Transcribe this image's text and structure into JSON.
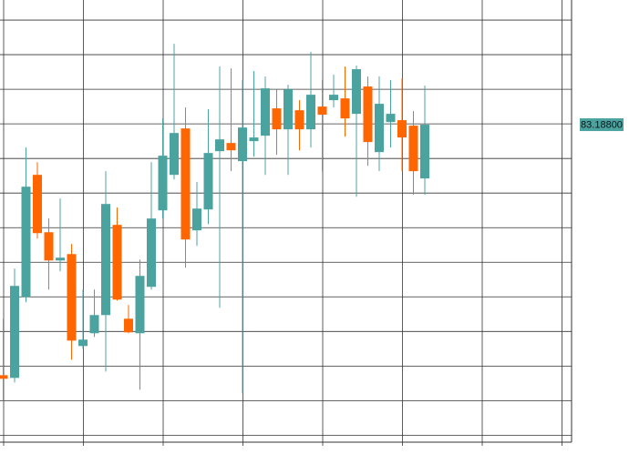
{
  "chart_data": {
    "type": "candlestick",
    "categories": [
      null,
      null,
      null,
      null,
      null,
      null,
      null,
      null,
      null,
      null,
      null,
      null,
      null,
      null,
      null,
      null,
      null,
      null,
      null,
      null,
      null,
      null,
      null,
      null,
      null,
      null,
      null,
      null,
      null,
      null,
      null,
      null,
      null,
      null,
      null,
      null,
      null,
      null
    ],
    "open": [
      79.568,
      79.529,
      80.7,
      82.463,
      81.634,
      81.226,
      81.318,
      79.99,
      80.174,
      80.437,
      81.74,
      80.384,
      80.174,
      80.845,
      81.95,
      82.463,
      83.134,
      81.661,
      81.963,
      82.805,
      82.924,
      82.661,
      82.95,
      83.029,
      83.424,
      83.121,
      83.397,
      83.121,
      83.45,
      83.542,
      83.568,
      83.345,
      83.74,
      82.792,
      83.226,
      83.253,
      83.174,
      82.411
    ],
    "high": [
      80.384,
      81.108,
      82.858,
      82.647,
      81.832,
      82.121,
      81.463,
      80.805,
      80.805,
      82.516,
      81.99,
      80.582,
      81.24,
      82.647,
      83.279,
      84.358,
      83.437,
      82.358,
      83.411,
      84.029,
      84.003,
      83.832,
      83.963,
      83.884,
      83.7,
      83.766,
      83.542,
      84.24,
      83.832,
      83.911,
      84.029,
      84.042,
      83.884,
      83.884,
      83.832,
      83.858,
      83.384,
      83.753
    ],
    "low": [
      79.2,
      79.463,
      80.621,
      81.542,
      80.805,
      81.068,
      79.792,
      79.95,
      80.121,
      79.621,
      80.647,
      80.174,
      79.358,
      80.805,
      81.832,
      82.397,
      81.121,
      81.437,
      81.753,
      80.542,
      82.516,
      79.305,
      82.726,
      82.463,
      82.753,
      82.463,
      82.818,
      82.858,
      82.516,
      83.437,
      83.016,
      82.147,
      82.595,
      82.516,
      82.858,
      82.516,
      82.174,
      82.174
    ],
    "close": [
      79.516,
      80.858,
      82.292,
      81.621,
      81.226,
      81.266,
      80.068,
      80.082,
      80.437,
      82.042,
      80.661,
      80.187,
      81.003,
      81.832,
      82.74,
      83.068,
      81.529,
      81.976,
      82.779,
      82.976,
      82.818,
      83.147,
      83.003,
      83.713,
      83.121,
      83.7,
      83.121,
      83.621,
      83.332,
      83.621,
      83.279,
      83.99,
      82.937,
      83.49,
      83.345,
      83.003,
      82.516,
      83.188
    ],
    "up_color": "#4ba3a0",
    "down_color": "#ff6600",
    "ylim": [
      78.6,
      84.99
    ],
    "yticks": [
      78.7,
      79.2,
      79.7,
      80.2,
      80.7,
      81.2,
      81.7,
      82.2,
      82.7,
      83.2,
      83.7,
      84.2,
      84.7
    ],
    "grid": true,
    "price_label": {
      "value": 83.188,
      "label": "83.18800"
    }
  }
}
